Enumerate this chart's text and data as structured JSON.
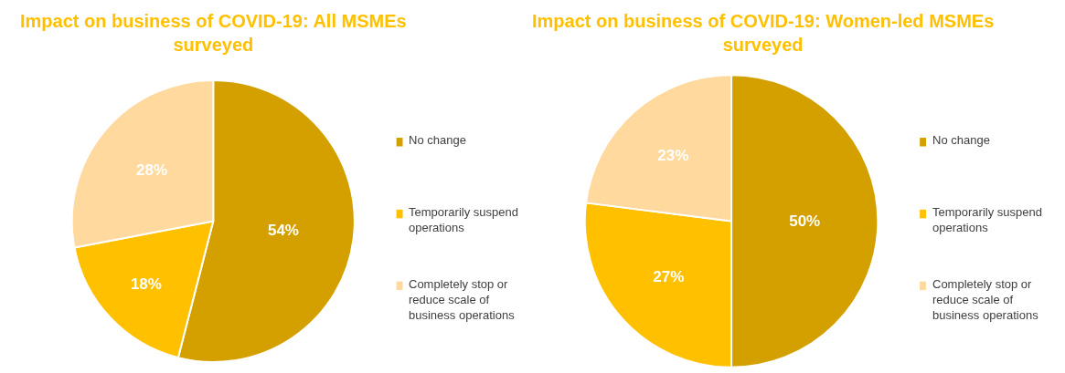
{
  "chart_data": [
    {
      "type": "pie",
      "title": "Impact on business of COVID-19: All MSMEs surveyed",
      "categories": [
        "No change",
        "Temporarily suspend operations",
        "Completely stop or reduce scale of business operations"
      ],
      "values": [
        54,
        18,
        28
      ],
      "value_labels": [
        "54%",
        "18%",
        "28%"
      ],
      "colors": [
        "#d4a000",
        "#ffc000",
        "#ffd99e"
      ],
      "legend": "right"
    },
    {
      "type": "pie",
      "title": "Impact on business of COVID-19: Women-led MSMEs surveyed",
      "categories": [
        "No change",
        "Temporarily suspend operations",
        "Completely stop or reduce scale of business operations"
      ],
      "values": [
        50,
        27,
        23
      ],
      "value_labels": [
        "50%",
        "27%",
        "23%"
      ],
      "colors": [
        "#d4a000",
        "#ffc000",
        "#ffd99e"
      ],
      "legend": "right"
    }
  ]
}
